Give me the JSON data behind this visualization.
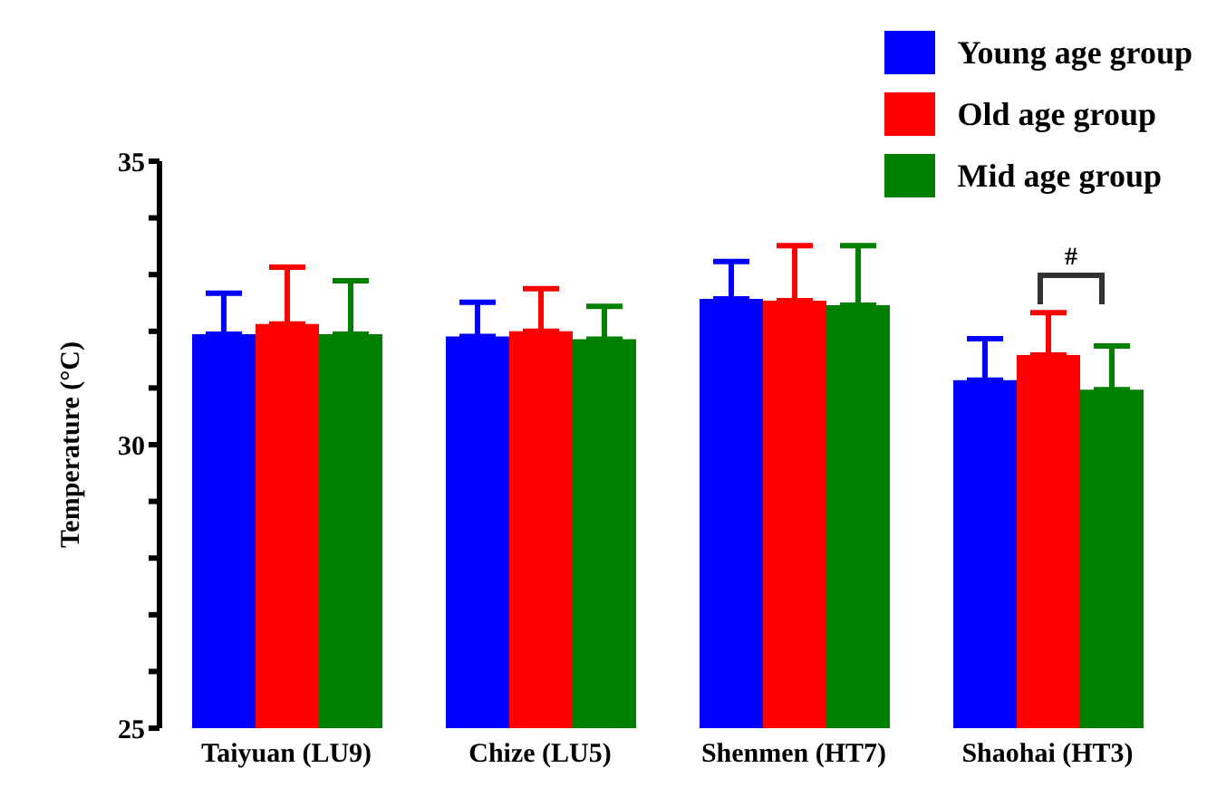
{
  "chart_data": {
    "type": "bar",
    "ylabel": "Temperature (°C)",
    "categories": [
      "Taiyuan (LU9)",
      "Chize (LU5)",
      "Shenmen (HT7)",
      "Shaohai (HT3)"
    ],
    "series": [
      {
        "name": "Young age group",
        "color": "#0000ff",
        "values": [
          31.95,
          31.91,
          32.57,
          31.14
        ],
        "errors": [
          [
            31.95,
            32.67
          ],
          [
            31.91,
            32.51
          ],
          [
            32.57,
            33.23
          ],
          [
            31.14,
            31.87
          ]
        ]
      },
      {
        "name": "Old age group",
        "color": "#ff0000",
        "values": [
          32.13,
          32.0,
          32.54,
          31.58
        ],
        "errors": [
          [
            32.13,
            33.13
          ],
          [
            32.0,
            32.75
          ],
          [
            32.54,
            33.51
          ],
          [
            31.58,
            32.33
          ]
        ]
      },
      {
        "name": "Mid age group",
        "color": "#008000",
        "values": [
          31.95,
          31.86,
          32.46,
          30.97
        ],
        "errors": [
          [
            31.95,
            32.89
          ],
          [
            31.86,
            32.44
          ],
          [
            32.46,
            33.51
          ],
          [
            30.97,
            31.74
          ]
        ]
      }
    ],
    "ylim": [
      25,
      35
    ],
    "yticks": [
      25,
      {
        "value": 26,
        "label": null
      },
      {
        "value": 27,
        "label": null
      },
      {
        "value": 28,
        "label": null
      },
      {
        "value": 29,
        "label": null
      },
      30,
      {
        "value": 31,
        "label": null
      },
      {
        "value": 32,
        "label": null
      },
      {
        "value": 33,
        "label": null
      },
      {
        "value": 34,
        "label": null
      },
      35
    ],
    "annotations": [
      "#"
    ],
    "legend": "top right",
    "grid": false
  }
}
